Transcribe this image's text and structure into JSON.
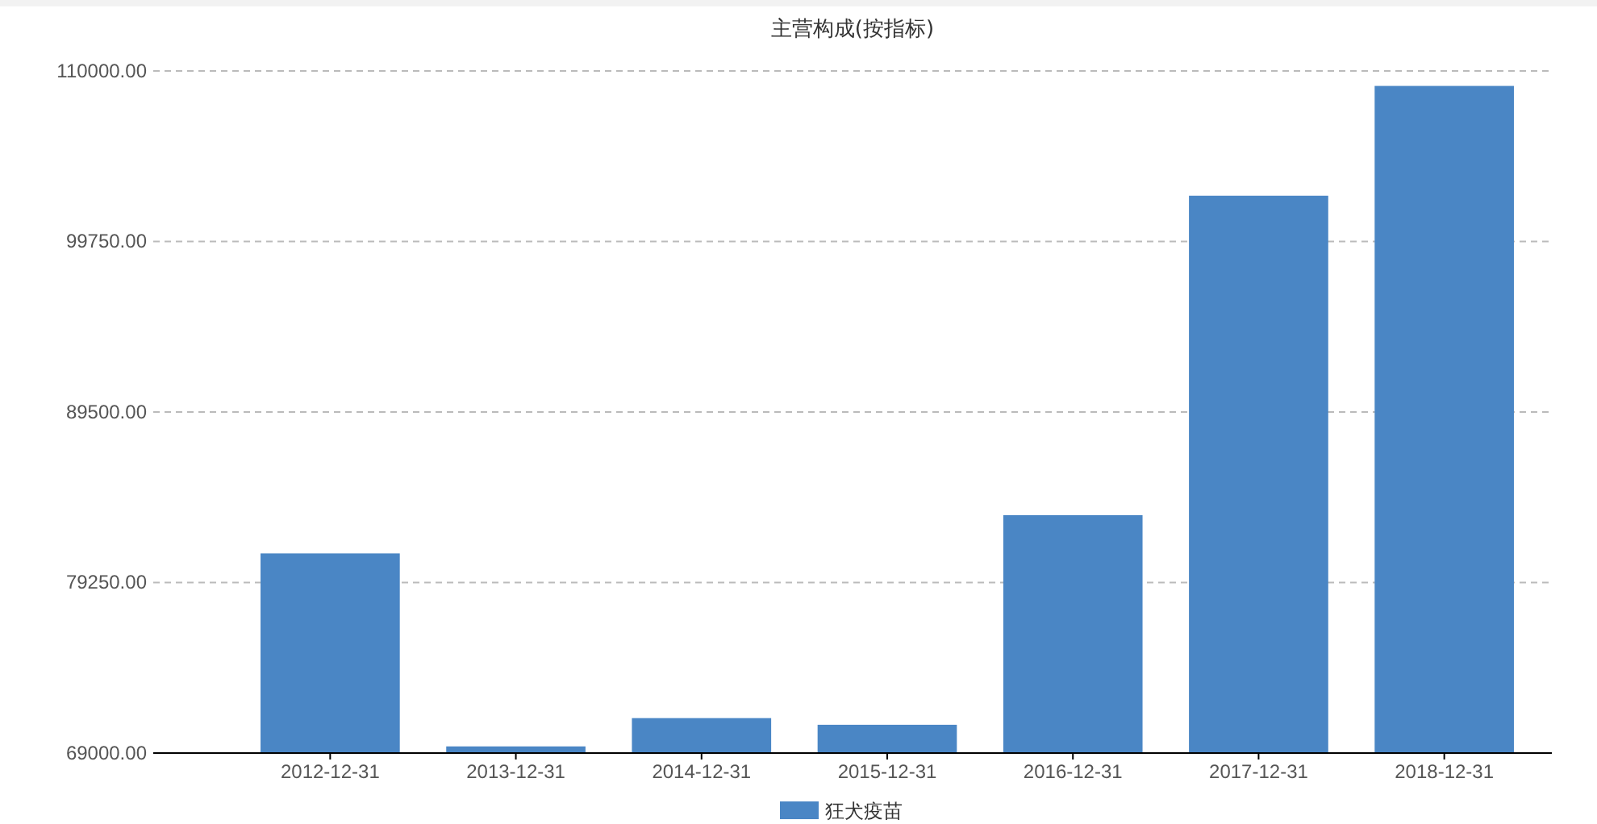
{
  "chart_data": {
    "type": "bar",
    "title": "主营构成(按指标)",
    "categories": [
      "2012-12-31",
      "2013-12-31",
      "2014-12-31",
      "2015-12-31",
      "2016-12-31",
      "2017-12-31",
      "2018-12-31"
    ],
    "series": [
      {
        "name": "狂犬疫苗",
        "color": "#4a86c5",
        "values": [
          81000,
          69400,
          71100,
          70700,
          83300,
          102500,
          109100
        ]
      }
    ],
    "ylim": [
      69000,
      110000
    ],
    "yticks": [
      {
        "value": 69000,
        "label": "69000.00"
      },
      {
        "value": 79250,
        "label": "79250.00"
      },
      {
        "value": 89500,
        "label": "89500.00"
      },
      {
        "value": 99750,
        "label": "99750.00"
      },
      {
        "value": 110000,
        "label": "110000.00"
      }
    ],
    "grid": "y",
    "legend": "bottom"
  }
}
